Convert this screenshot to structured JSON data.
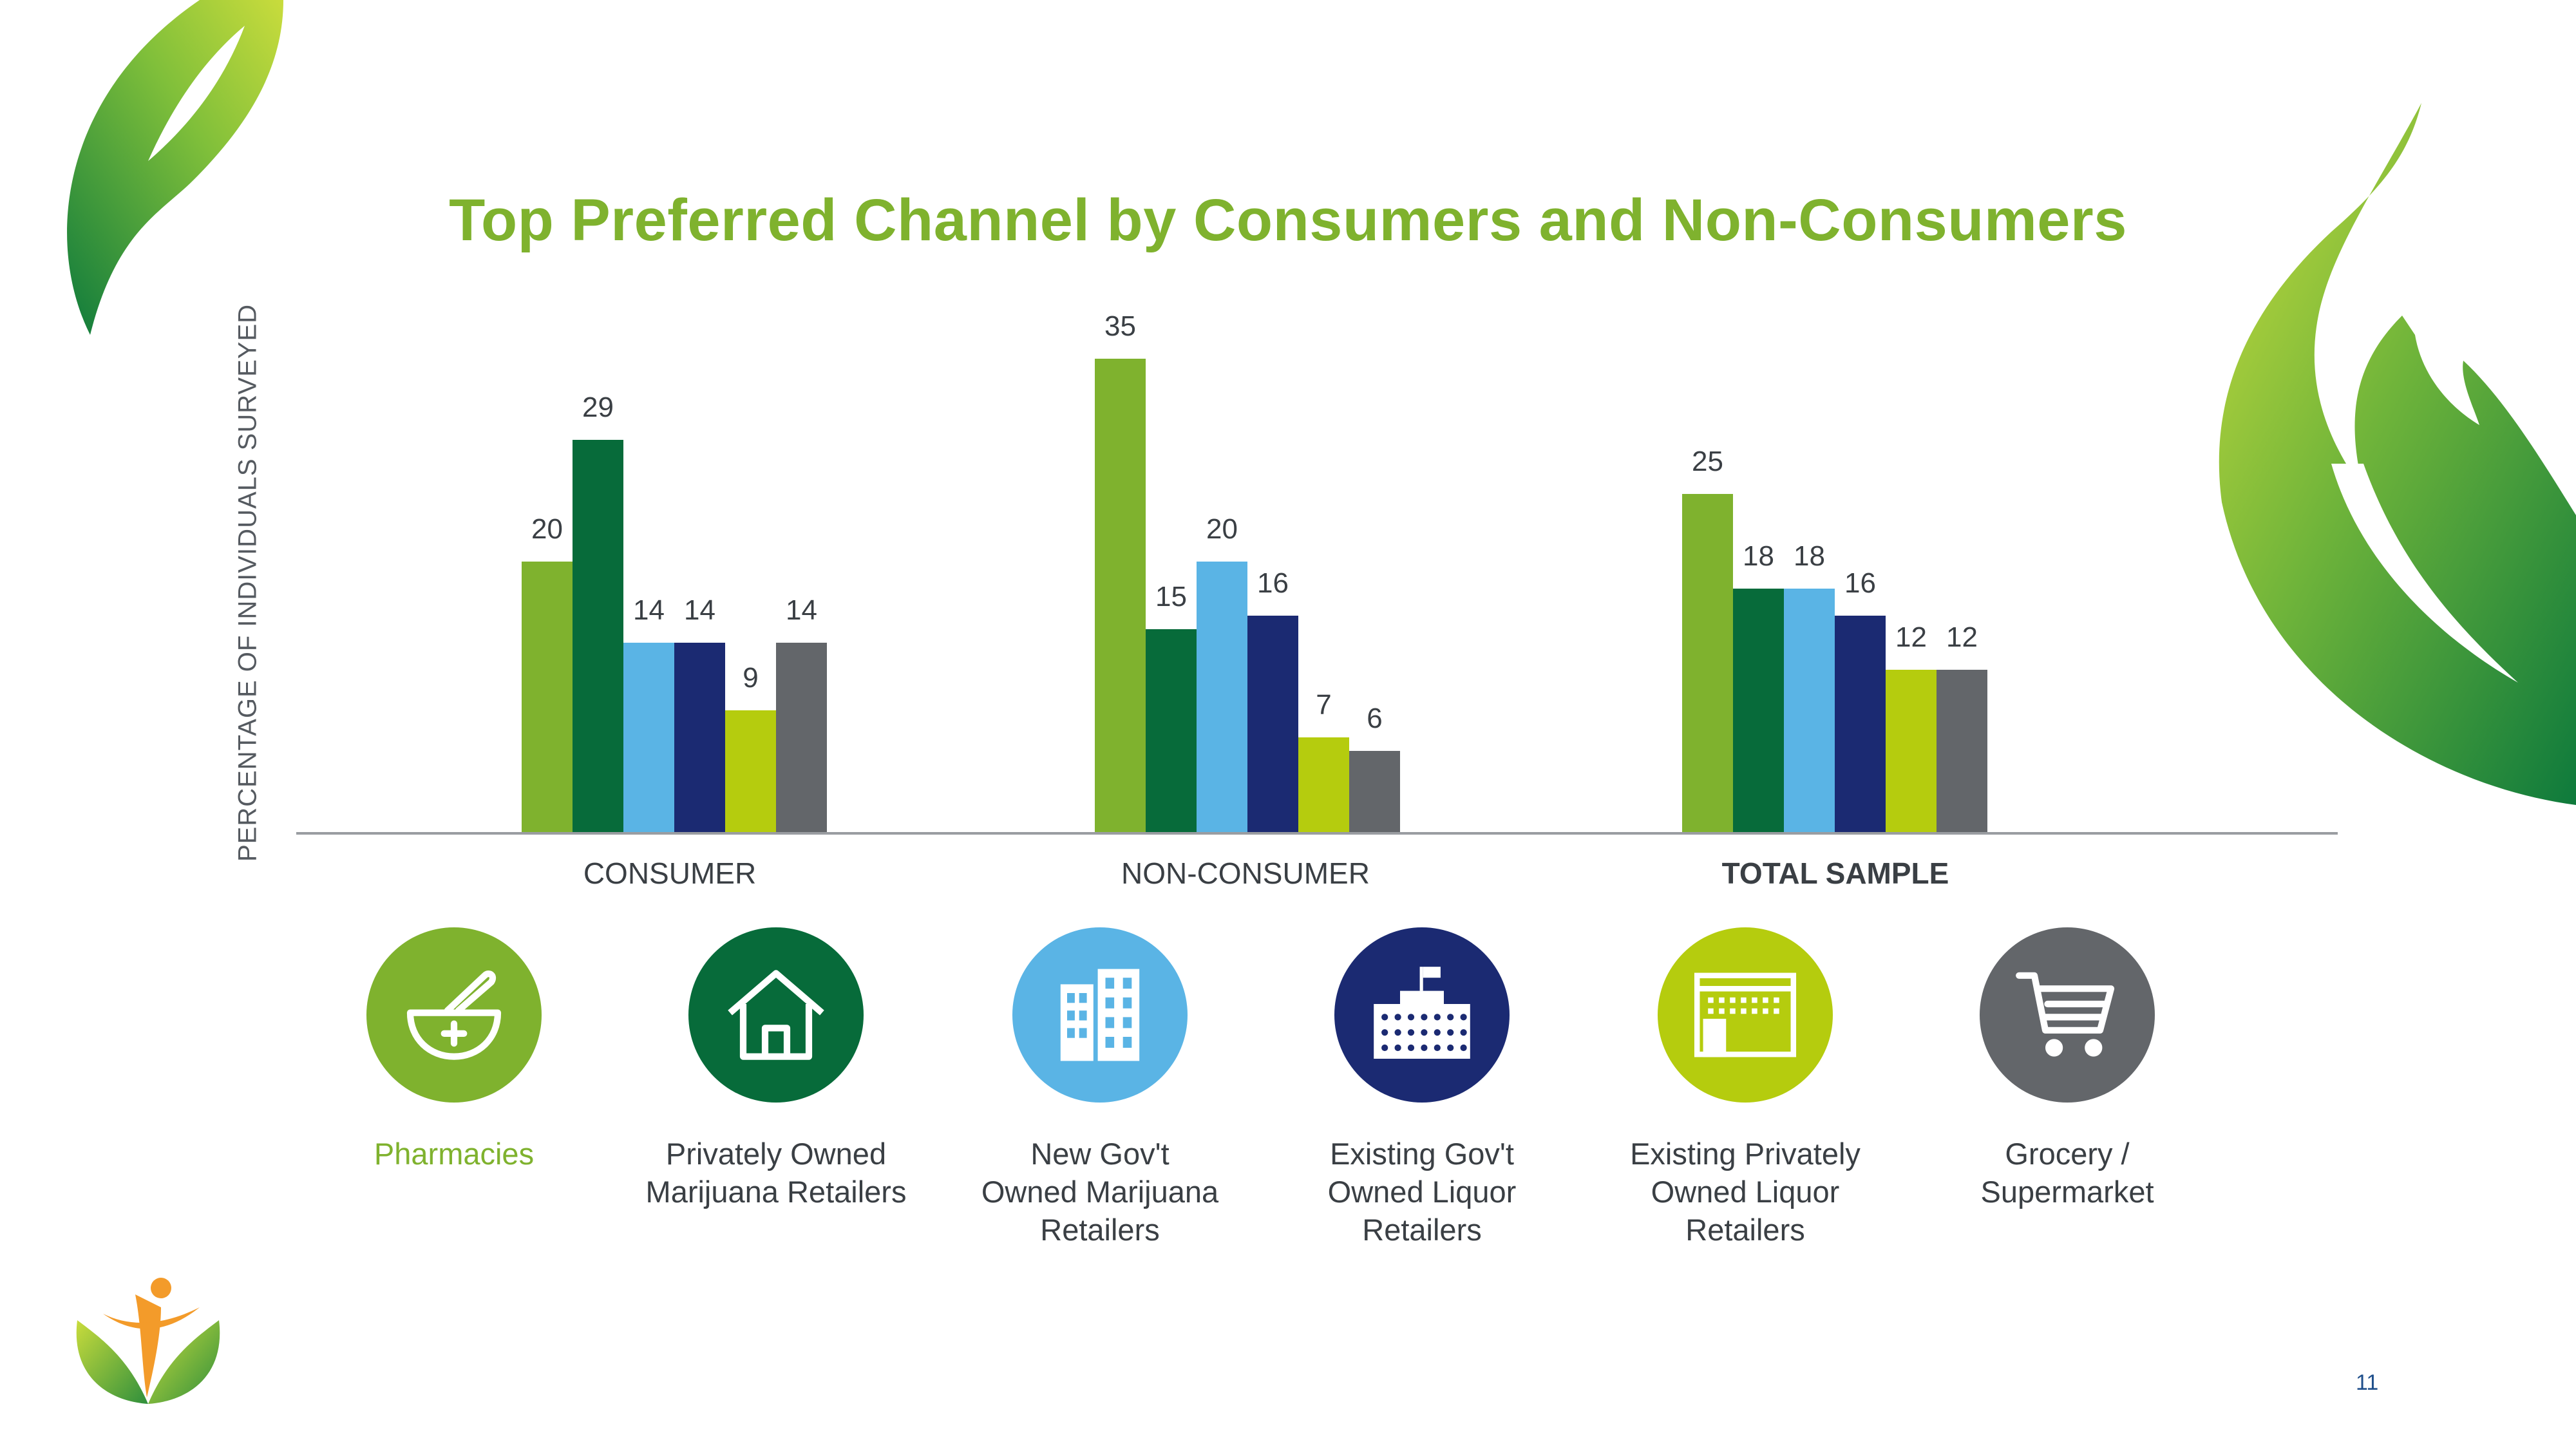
{
  "slide": {
    "page_number": "11"
  },
  "channels": [
    {
      "label": "Pharmacies",
      "icon": "mortar-pestle-icon",
      "color": "#7fb22e",
      "label_color": "#7fb22e"
    },
    {
      "label": "Privately Owned\nMarijuana Retailers",
      "icon": "house-icon",
      "color": "#076b3a",
      "label_color": "#3a3f44"
    },
    {
      "label": "New Gov't\nOwned Marijuana\nRetailers",
      "icon": "office-building-icon",
      "color": "#5ab4e5",
      "label_color": "#3a3f44"
    },
    {
      "label": "Existing Gov't\nOwned Liquor\nRetailers",
      "icon": "government-building-icon",
      "color": "#1b2a72",
      "label_color": "#3a3f44"
    },
    {
      "label": "Existing Privately\nOwned Liquor\nRetailers",
      "icon": "storefront-icon",
      "color": "#b5cc0e",
      "label_color": "#3a3f44"
    },
    {
      "label": "Grocery /\nSupermarket",
      "icon": "shopping-cart-icon",
      "color": "#63666a",
      "label_color": "#3a3f44"
    }
  ],
  "chart_data": {
    "type": "bar",
    "title": "Top Preferred Channel by Consumers and Non-Consumers",
    "ylabel": "PERCENTAGE OF INDIVIDUALS SURVEYED",
    "xlabel": "",
    "categories": [
      "CONSUMER",
      "NON-CONSUMER",
      "TOTAL SAMPLE"
    ],
    "category_bold": [
      false,
      false,
      true
    ],
    "series": [
      {
        "name": "Pharmacies",
        "color": "#7fb22e",
        "values": [
          20,
          35,
          25
        ]
      },
      {
        "name": "Privately Owned Marijuana Retailers",
        "color": "#076b3a",
        "values": [
          29,
          15,
          18
        ]
      },
      {
        "name": "New Gov't Owned Marijuana Retailers",
        "color": "#5ab4e5",
        "values": [
          14,
          20,
          18
        ]
      },
      {
        "name": "Existing Gov't Owned Liquor Retailers",
        "color": "#1b2a72",
        "values": [
          14,
          16,
          16
        ]
      },
      {
        "name": "Existing Privately Owned Liquor Retailers",
        "color": "#b5cc0e",
        "values": [
          9,
          7,
          12
        ]
      },
      {
        "name": "Grocery / Supermarket",
        "color": "#63666a",
        "values": [
          14,
          6,
          12
        ]
      }
    ],
    "ylim": [
      0,
      35
    ],
    "grid": false,
    "legend": "none",
    "data_labels": true
  }
}
